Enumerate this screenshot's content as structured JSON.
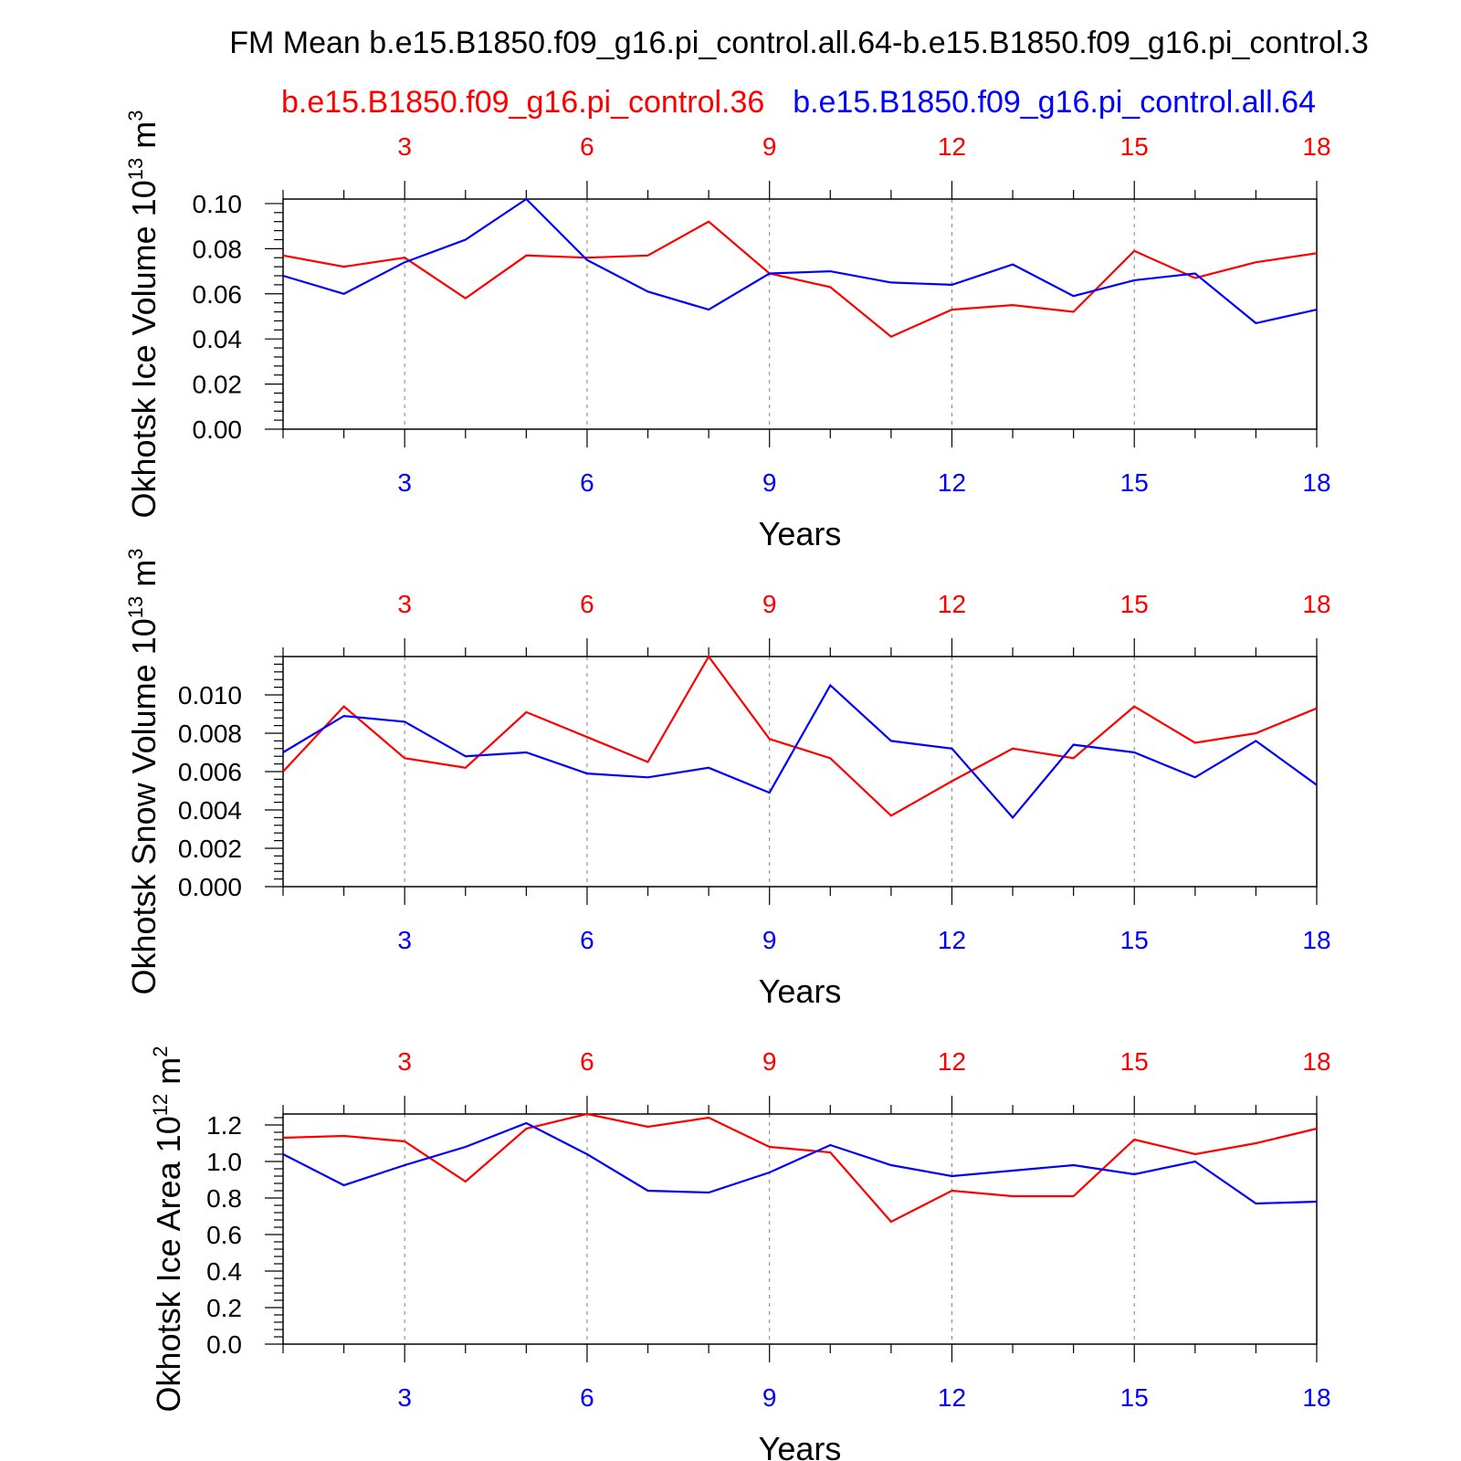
{
  "figure": {
    "title": "FM Mean b.e15.B1850.f09_g16.pi_control.all.64-b.e15.B1850.f09_g16.pi_control.3",
    "legend": {
      "red_name": "b.e15.B1850.f09_g16.pi_control.36",
      "blue_name": "b.e15.B1850.f09_g16.pi_control.all.64"
    }
  },
  "colors": {
    "red": "#ff0000",
    "blue": "#0000ff",
    "axis": "#000000",
    "grid": "#808080"
  },
  "chart_data": [
    {
      "type": "line",
      "ylabel": "Okhotsk Ice Volume 10",
      "ylabel_exp": "13",
      "ylabel_unit": "m",
      "ylabel_unit_exp": "3",
      "xlabel": "Years",
      "xlim": [
        1,
        18
      ],
      "ylim": [
        0,
        0.102
      ],
      "yticks": [
        0,
        0.02,
        0.04,
        0.06,
        0.08,
        0.1
      ],
      "ytick_labels": [
        "0.00",
        "0.02",
        "0.04",
        "0.06",
        "0.08",
        "0.10"
      ],
      "xticks": [
        3,
        6,
        9,
        12,
        15,
        18
      ],
      "xtick_labels": [
        "3",
        "6",
        "9",
        "12",
        "15",
        "18"
      ],
      "x": [
        1,
        2,
        3,
        4,
        5,
        6,
        7,
        8,
        9,
        10,
        11,
        12,
        13,
        14,
        15,
        16,
        17,
        18
      ],
      "series": [
        {
          "color": "red",
          "values": [
            0.077,
            0.072,
            0.076,
            0.058,
            0.077,
            0.076,
            0.077,
            0.092,
            0.069,
            0.063,
            0.041,
            0.053,
            0.055,
            0.052,
            0.079,
            0.067,
            0.074,
            0.078
          ]
        },
        {
          "color": "blue",
          "values": [
            0.068,
            0.06,
            0.074,
            0.084,
            0.102,
            0.075,
            0.061,
            0.053,
            0.069,
            0.07,
            0.065,
            0.064,
            0.073,
            0.059,
            0.066,
            0.069,
            0.047,
            0.053
          ]
        }
      ]
    },
    {
      "type": "line",
      "ylabel": "Okhotsk Snow Volume 10",
      "ylabel_exp": "13",
      "ylabel_unit": "m",
      "ylabel_unit_exp": "3",
      "xlabel": "Years",
      "xlim": [
        1,
        18
      ],
      "ylim": [
        0,
        0.012
      ],
      "yticks": [
        0,
        0.002,
        0.004,
        0.006,
        0.008,
        0.01
      ],
      "ytick_labels": [
        "0.000",
        "0.002",
        "0.004",
        "0.006",
        "0.008",
        "0.010"
      ],
      "xticks": [
        3,
        6,
        9,
        12,
        15,
        18
      ],
      "xtick_labels": [
        "3",
        "6",
        "9",
        "12",
        "15",
        "18"
      ],
      "x": [
        1,
        2,
        3,
        4,
        5,
        6,
        7,
        8,
        9,
        10,
        11,
        12,
        13,
        14,
        15,
        16,
        17,
        18
      ],
      "series": [
        {
          "color": "red",
          "values": [
            0.006,
            0.0094,
            0.0067,
            0.0062,
            0.0091,
            0.0078,
            0.0065,
            0.012,
            0.0077,
            0.0067,
            0.0037,
            0.0055,
            0.0072,
            0.0067,
            0.0094,
            0.0075,
            0.008,
            0.0093
          ]
        },
        {
          "color": "blue",
          "values": [
            0.007,
            0.0089,
            0.0086,
            0.0068,
            0.007,
            0.0059,
            0.0057,
            0.0062,
            0.0049,
            0.0105,
            0.0076,
            0.0072,
            0.0036,
            0.0074,
            0.007,
            0.0057,
            0.0076,
            0.0053
          ]
        }
      ]
    },
    {
      "type": "line",
      "ylabel": "Okhotsk Ice Area 10",
      "ylabel_exp": "12",
      "ylabel_unit": "m",
      "ylabel_unit_exp": "2",
      "xlabel": "Years",
      "xlim": [
        1,
        18
      ],
      "ylim": [
        0,
        1.26
      ],
      "yticks": [
        0,
        0.2,
        0.4,
        0.6,
        0.8,
        1.0,
        1.2
      ],
      "ytick_labels": [
        "0.0",
        "0.2",
        "0.4",
        "0.6",
        "0.8",
        "1.0",
        "1.2"
      ],
      "xticks": [
        3,
        6,
        9,
        12,
        15,
        18
      ],
      "xtick_labels": [
        "3",
        "6",
        "9",
        "12",
        "15",
        "18"
      ],
      "x": [
        1,
        2,
        3,
        4,
        5,
        6,
        7,
        8,
        9,
        10,
        11,
        12,
        13,
        14,
        15,
        16,
        17,
        18
      ],
      "series": [
        {
          "color": "red",
          "values": [
            1.13,
            1.14,
            1.11,
            0.89,
            1.18,
            1.26,
            1.19,
            1.24,
            1.08,
            1.05,
            0.67,
            0.84,
            0.81,
            0.81,
            1.12,
            1.04,
            1.1,
            1.18
          ]
        },
        {
          "color": "blue",
          "values": [
            1.04,
            0.87,
            0.98,
            1.08,
            1.21,
            1.04,
            0.84,
            0.83,
            0.94,
            1.09,
            0.98,
            0.92,
            0.95,
            0.98,
            0.93,
            1.0,
            0.77,
            0.78
          ]
        }
      ]
    }
  ]
}
